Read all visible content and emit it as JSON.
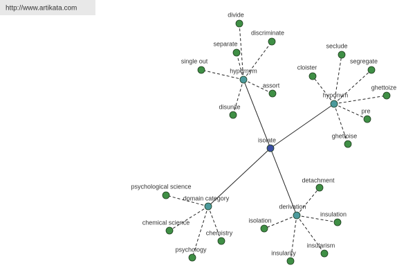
{
  "header": {
    "url": "http://www.artikata.com"
  },
  "nodes": [
    {
      "label": "isolate"
    },
    {
      "label": "hypernym"
    },
    {
      "label": "divide"
    },
    {
      "label": "discriminate"
    },
    {
      "label": "separate"
    },
    {
      "label": "single out"
    },
    {
      "label": "assort"
    },
    {
      "label": "disunite"
    },
    {
      "label": "hyponym"
    },
    {
      "label": "seclude"
    },
    {
      "label": "segregate"
    },
    {
      "label": "cloister"
    },
    {
      "label": "ghettoize"
    },
    {
      "label": "pre"
    },
    {
      "label": "ghettoise"
    },
    {
      "label": "domain category"
    },
    {
      "label": "psychological science"
    },
    {
      "label": "chemical science"
    },
    {
      "label": "chemistry"
    },
    {
      "label": "psychology"
    },
    {
      "label": "derivation"
    },
    {
      "label": "detachment"
    },
    {
      "label": "insulation"
    },
    {
      "label": "isolation"
    },
    {
      "label": "insularity"
    },
    {
      "label": "insularism"
    }
  ]
}
